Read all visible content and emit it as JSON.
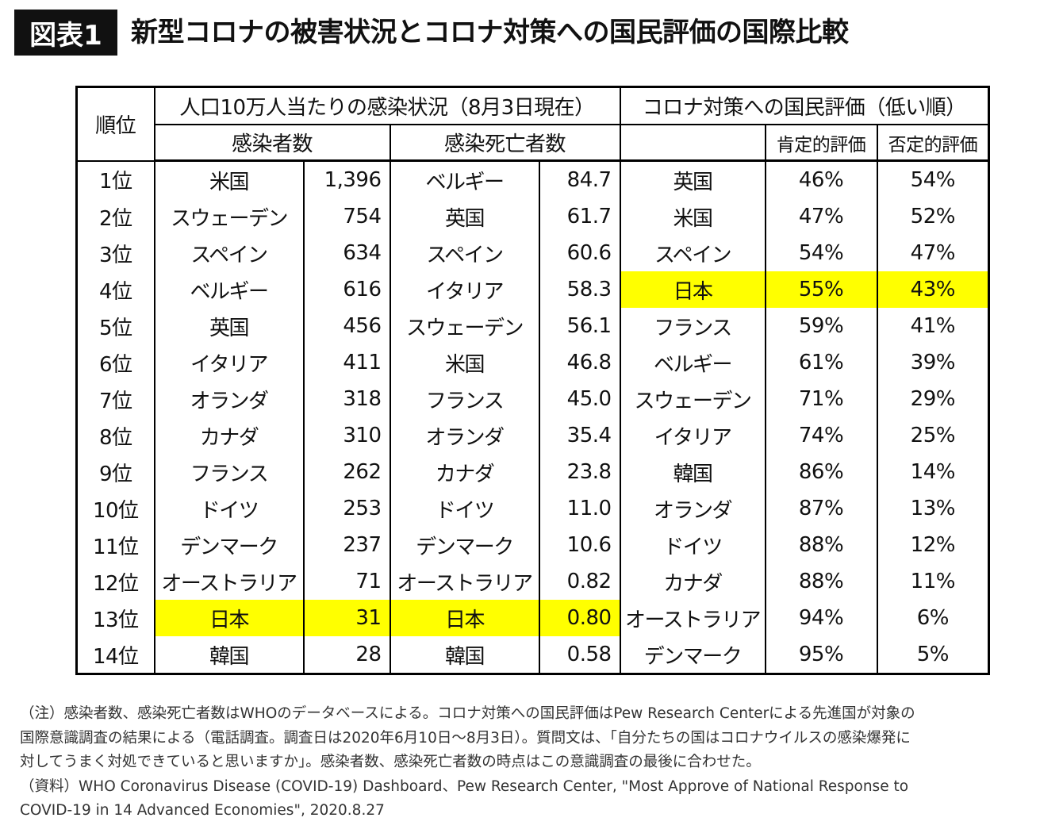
{
  "header": {
    "badge": "図表1",
    "title": "新型コロナの被害状況とコロナ対策への国民評価の国際比較"
  },
  "table": {
    "columns": {
      "rank": "順位",
      "infection_group": "人口10万人当たりの感染状況（8月3日現在）",
      "cases": "感染者数",
      "deaths": "感染死亡者数",
      "evaluation_group": "コロナ対策への国民評価（低い順）",
      "positive": "肯定的評価",
      "negative": "否定的評価"
    },
    "rows": [
      [
        "1位",
        "米国",
        "1,396",
        "ベルギー",
        "84.7",
        "英国",
        "46%",
        "54%"
      ],
      [
        "2位",
        "スウェーデン",
        "754",
        "英国",
        "61.7",
        "米国",
        "47%",
        "52%"
      ],
      [
        "3位",
        "スペイン",
        "634",
        "スペイン",
        "60.6",
        "スペイン",
        "54%",
        "47%"
      ],
      [
        "4位",
        "ベルギー",
        "616",
        "イタリア",
        "58.3",
        "日本",
        "55%",
        "43%"
      ],
      [
        "5位",
        "英国",
        "456",
        "スウェーデン",
        "56.1",
        "フランス",
        "59%",
        "41%"
      ],
      [
        "6位",
        "イタリア",
        "411",
        "米国",
        "46.8",
        "ベルギー",
        "61%",
        "39%"
      ],
      [
        "7位",
        "オランダ",
        "318",
        "フランス",
        "45.0",
        "スウェーデン",
        "71%",
        "29%"
      ],
      [
        "8位",
        "カナダ",
        "310",
        "オランダ",
        "35.4",
        "イタリア",
        "74%",
        "25%"
      ],
      [
        "9位",
        "フランス",
        "262",
        "カナダ",
        "23.8",
        "韓国",
        "86%",
        "14%"
      ],
      [
        "10位",
        "ドイツ",
        "253",
        "ドイツ",
        "11.0",
        "オランダ",
        "87%",
        "13%"
      ],
      [
        "11位",
        "デンマーク",
        "237",
        "デンマーク",
        "10.6",
        "ドイツ",
        "88%",
        "12%"
      ],
      [
        "12位",
        "オーストラリア",
        "71",
        "オーストラリア",
        "0.82",
        "カナダ",
        "88%",
        "11%"
      ],
      [
        "13位",
        "日本",
        "31",
        "日本",
        "0.80",
        "オーストラリア",
        "94%",
        "6%"
      ],
      [
        "14位",
        "韓国",
        "28",
        "韓国",
        "0.58",
        "デンマーク",
        "95%",
        "5%"
      ]
    ]
  },
  "notes": [
    "（注）感染者数、感染死亡者数はWHOのデータベースによる。コロナ対策への国民評価はPew Research Centerによる先進国が対象の",
    "国際意識調査の結果による（電話調査。調査日は2020年6月10日～8月3日）。質問文は、「自分たちの国はコロナウイルスの感染爆発に",
    "対してうまく対処できていると思いますか」。感染者数、感染死亡者数の時点はこの意識調査の最後に合わせた。",
    "（資料）WHO Coronavirus Disease (COVID-19) Dashboard、Pew Research Center, \"Most Approve of National Response to",
    "COVID-19 in 14 Advanced Economies\", 2020.8.27"
  ]
}
